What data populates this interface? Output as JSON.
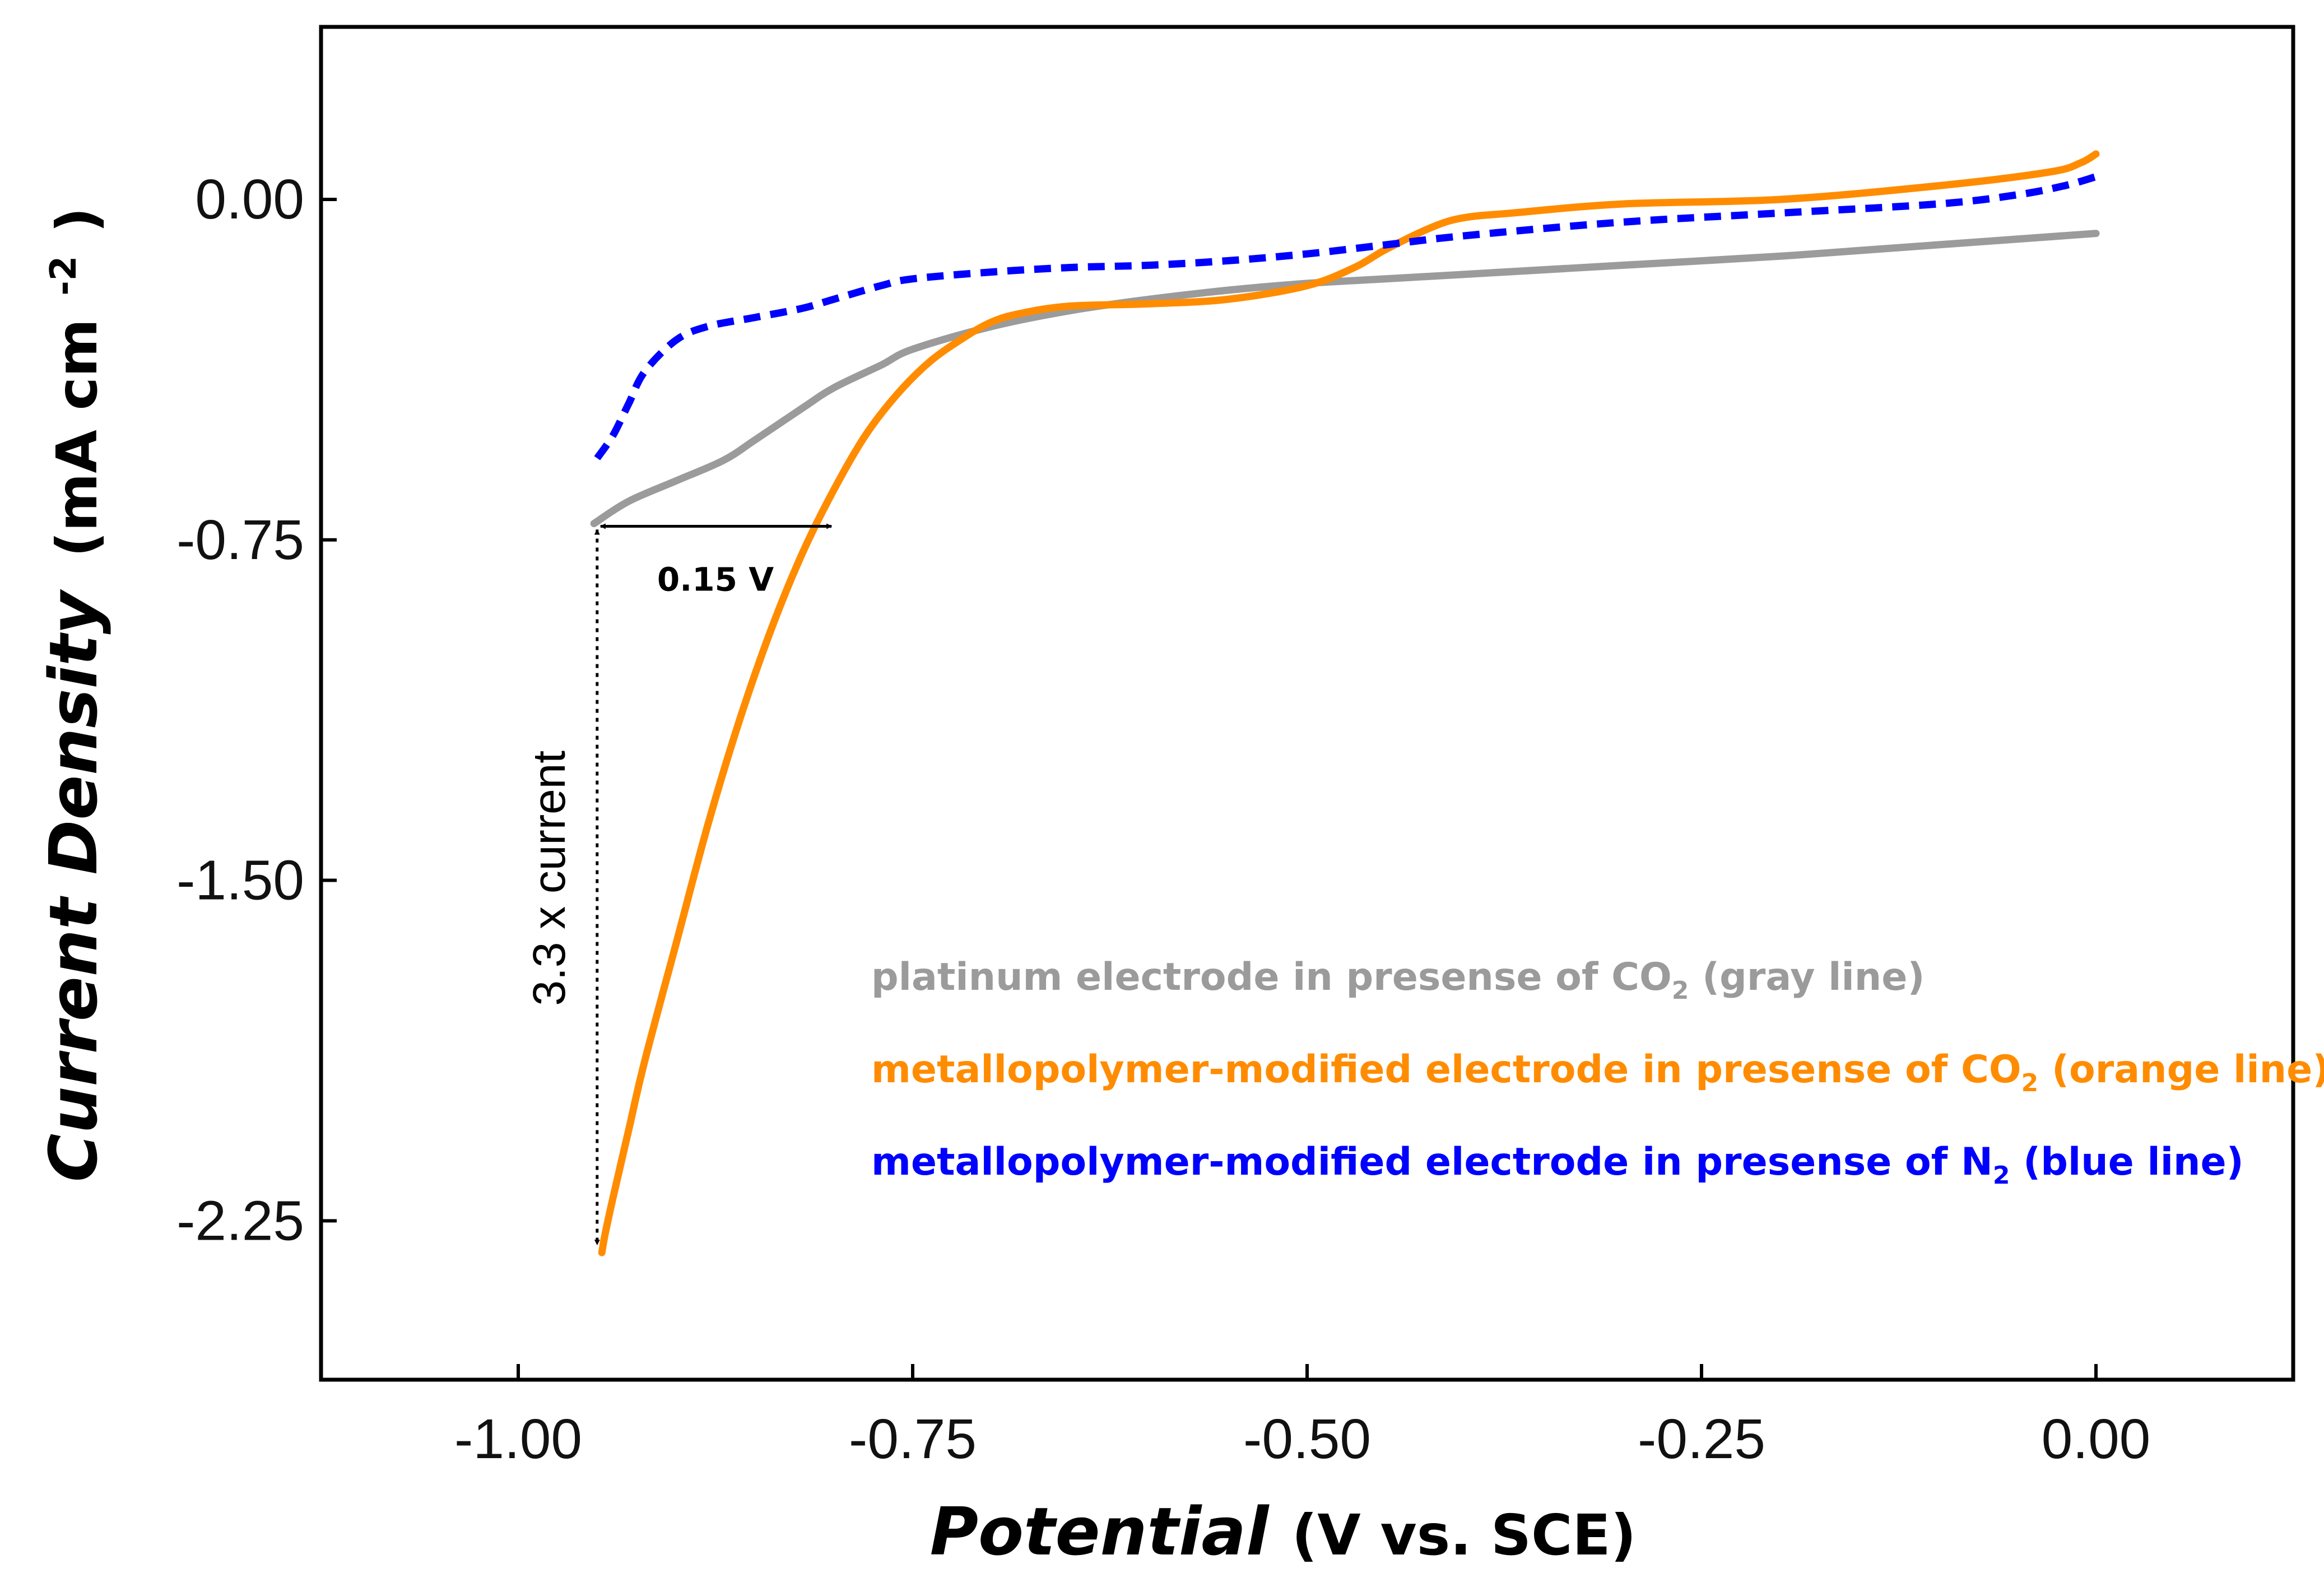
{
  "chart_data": {
    "type": "line",
    "title": "",
    "xlabel": {
      "main": "Potential",
      "units": "(V vs. SCE)"
    },
    "ylabel": {
      "main": "Current Density",
      "units_prefix": "(mA cm",
      "units_exp": "-2",
      "units_suffix": ")"
    },
    "xlim": [
      -1.125,
      0.125
    ],
    "ylim": [
      -2.6,
      0.38
    ],
    "x_ticks": [
      -1.0,
      -0.75,
      -0.5,
      -0.25,
      0.0
    ],
    "x_tick_labels": [
      "-1.00",
      "-0.75",
      "-0.50",
      "-0.25",
      "0.00"
    ],
    "y_ticks": [
      0.0,
      -0.75,
      -1.5,
      -2.25
    ],
    "y_tick_labels": [
      "0.00",
      "-0.75",
      "-1.50",
      "-2.25"
    ],
    "grid": false,
    "series": [
      {
        "name": "gray",
        "color": "#9b9b9b",
        "dash": "solid",
        "x": [
          -0.952,
          -0.93,
          -0.9,
          -0.87,
          -0.85,
          -0.82,
          -0.8,
          -0.77,
          -0.75,
          -0.7,
          -0.65,
          -0.6,
          -0.55,
          -0.5,
          -0.45,
          -0.4,
          -0.3,
          -0.2,
          -0.1,
          0.0
        ],
        "y": [
          -0.714,
          -0.665,
          -0.62,
          -0.575,
          -0.53,
          -0.46,
          -0.415,
          -0.365,
          -0.33,
          -0.28,
          -0.245,
          -0.22,
          -0.2,
          -0.185,
          -0.175,
          -0.165,
          -0.145,
          -0.125,
          -0.1,
          -0.075
        ]
      },
      {
        "name": "orange",
        "color": "#ff8c00",
        "dash": "solid",
        "x": [
          -0.947,
          -0.945,
          -0.94,
          -0.93,
          -0.92,
          -0.9,
          -0.88,
          -0.86,
          -0.84,
          -0.82,
          -0.8,
          -0.78,
          -0.76,
          -0.74,
          -0.72,
          -0.7,
          -0.68,
          -0.65,
          -0.6,
          -0.55,
          -0.5,
          -0.47,
          -0.45,
          -0.42,
          -0.4,
          -0.37,
          -0.3,
          -0.2,
          -0.1,
          -0.03,
          -0.01,
          0.0
        ],
        "y": [
          -2.32,
          -2.28,
          -2.2,
          -2.05,
          -1.9,
          -1.64,
          -1.38,
          -1.15,
          -0.95,
          -0.78,
          -0.64,
          -0.52,
          -0.43,
          -0.36,
          -0.31,
          -0.27,
          -0.25,
          -0.235,
          -0.23,
          -0.22,
          -0.19,
          -0.15,
          -0.11,
          -0.06,
          -0.04,
          -0.03,
          -0.01,
          0.0,
          0.03,
          0.06,
          0.08,
          0.1
        ]
      },
      {
        "name": "blue",
        "color": "#0000ff",
        "dash": "dashed",
        "x": [
          -0.95,
          -0.94,
          -0.93,
          -0.92,
          -0.9,
          -0.88,
          -0.85,
          -0.82,
          -0.8,
          -0.77,
          -0.75,
          -0.7,
          -0.65,
          -0.6,
          -0.55,
          -0.5,
          -0.45,
          -0.4,
          -0.3,
          -0.2,
          -0.1,
          -0.05,
          -0.02,
          0.0
        ],
        "y": [
          -0.57,
          -0.52,
          -0.45,
          -0.38,
          -0.31,
          -0.28,
          -0.26,
          -0.24,
          -0.22,
          -0.19,
          -0.175,
          -0.16,
          -0.15,
          -0.145,
          -0.135,
          -0.12,
          -0.1,
          -0.08,
          -0.05,
          -0.03,
          -0.01,
          0.01,
          0.03,
          0.05
        ]
      }
    ],
    "legend": {
      "placement": "bottom-right",
      "entries": [
        {
          "pre": "platinum electrode in presense of CO",
          "sub": "2",
          "post": " (gray line)",
          "color": "#9b9b9b"
        },
        {
          "pre": "metallopolymer-modified electrode in presense of CO",
          "sub": "2",
          "post": " (orange line)",
          "color": "#ff8c00"
        },
        {
          "pre": "metallopolymer-modified electrode in presense of N",
          "sub": "2",
          "post": " (blue line)",
          "color": "#0000ff"
        }
      ]
    },
    "annotations": {
      "horizontal": {
        "label": "0.15 V",
        "x_start": -0.95,
        "x_end": -0.8,
        "y": -0.72
      },
      "vertical": {
        "label": "3.3 x current",
        "x": -0.95,
        "y_start": -0.72,
        "y_end": -2.32
      }
    }
  }
}
